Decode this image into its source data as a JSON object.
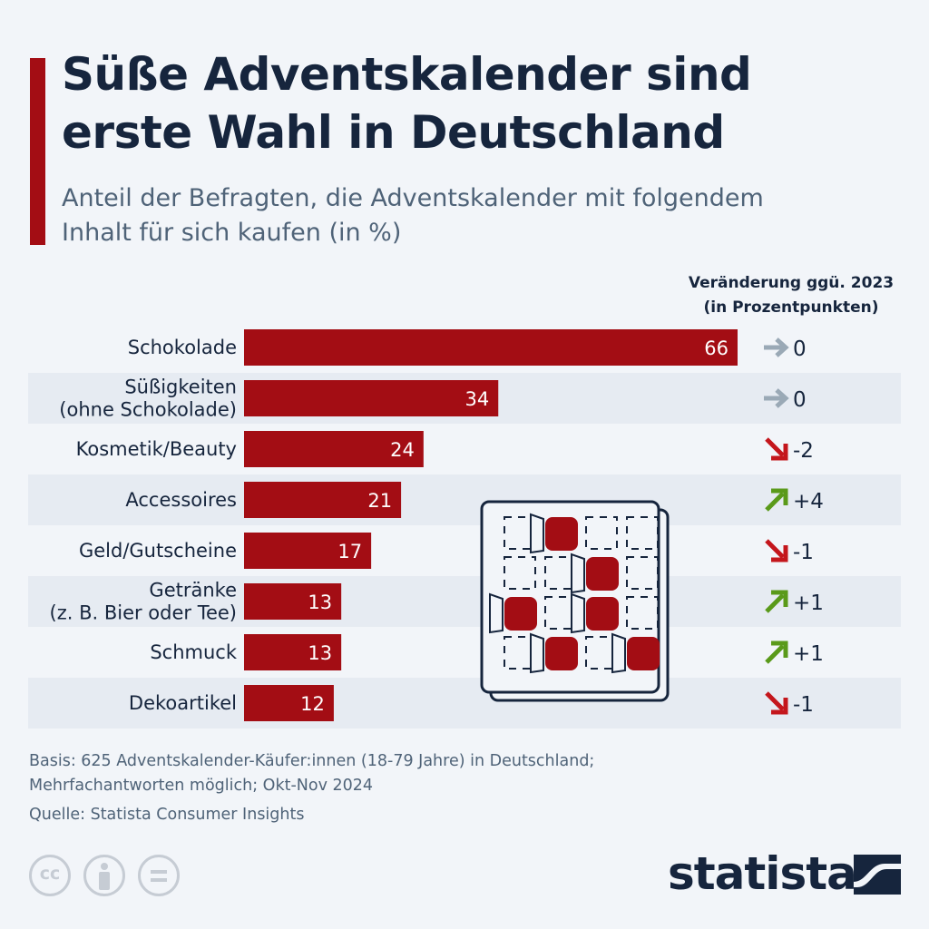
{
  "title": "Süße Adventskalender sind erste Wahl in Deutschland",
  "subtitle": "Anteil der Befragten, die Adventskalender mit folgendem Inhalt für sich kaufen (in %)",
  "change_header": {
    "line1": "Veränderung ggü. 2023",
    "line2": "(in Prozentpunkten)"
  },
  "colors": {
    "bar": "#a30d14",
    "title": "#16253d",
    "text": "#4f6378",
    "arrow_neutral": "#9aa9b6",
    "arrow_up": "#5a9a1a",
    "arrow_down": "#c4161c",
    "row_alt": "#e6ebf2"
  },
  "chart_data": {
    "type": "bar",
    "orientation": "horizontal",
    "categories": [
      [
        "Schokolade"
      ],
      [
        "Süßigkeiten",
        "(ohne Schokolade)"
      ],
      [
        "Kosmetik/Beauty"
      ],
      [
        "Accessoires"
      ],
      [
        "Geld/Gutscheine"
      ],
      [
        "Getränke",
        "(z. B. Bier oder Tee)"
      ],
      [
        "Schmuck"
      ],
      [
        "Dekoartikel"
      ]
    ],
    "values": [
      66,
      34,
      24,
      21,
      17,
      13,
      13,
      12
    ],
    "changes": [
      {
        "label": "0",
        "direction": "neutral"
      },
      {
        "label": "0",
        "direction": "neutral"
      },
      {
        "label": "-2",
        "direction": "down"
      },
      {
        "label": "+4",
        "direction": "up"
      },
      {
        "label": "-1",
        "direction": "down"
      },
      {
        "label": "+1",
        "direction": "up"
      },
      {
        "label": "+1",
        "direction": "up"
      },
      {
        "label": "-1",
        "direction": "down"
      }
    ],
    "xlim": [
      0,
      66
    ],
    "grid": false,
    "legend": "none"
  },
  "footnote": {
    "line1": "Basis: 625 Adventskalender-Käufer:innen (18-79 Jahre) in Deutschland;",
    "line2": "Mehrfachantworten möglich; Okt-Nov 2024"
  },
  "source": "Quelle: Statista Consumer Insights",
  "license_icons": [
    "creative-commons-icon",
    "attribution-icon",
    "no-derivatives-icon"
  ],
  "brand": "statista"
}
